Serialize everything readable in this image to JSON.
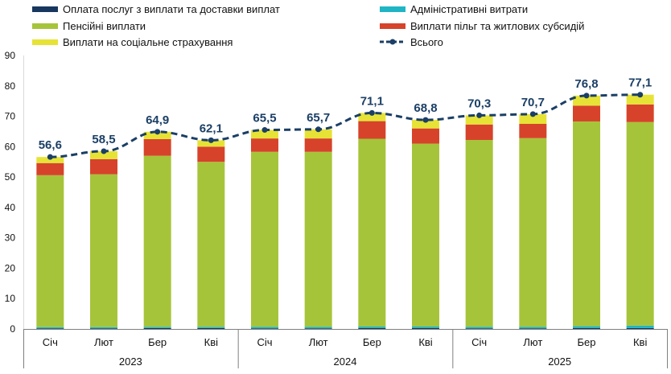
{
  "chart_data": {
    "type": "bar",
    "stacked": true,
    "categories": [
      "Січ",
      "Лют",
      "Бер",
      "Кві",
      "Січ",
      "Лют",
      "Бер",
      "Кві",
      "Січ",
      "Лют",
      "Бер",
      "Кві"
    ],
    "groups": [
      "2023",
      "2024",
      "2025"
    ],
    "ylim": [
      0,
      90
    ],
    "yticks": [
      0,
      10,
      20,
      30,
      40,
      50,
      60,
      70,
      80,
      90
    ],
    "legend_placement": "top",
    "grid": false,
    "series": [
      {
        "name": "Оплата послуг з виплати та доставки виплат",
        "color": "#17375e",
        "values": [
          0.2,
          0.2,
          0.3,
          0.3,
          0.2,
          0.2,
          0.3,
          0.3,
          0.2,
          0.2,
          0.3,
          0.3
        ]
      },
      {
        "name": "Адміністративні витрати",
        "color": "#1fb5c4",
        "values": [
          0.4,
          0.4,
          0.4,
          0.4,
          0.5,
          0.5,
          0.5,
          0.5,
          0.5,
          0.5,
          0.6,
          0.8
        ]
      },
      {
        "name": "Пенсійні виплати",
        "color": "#a6c43a",
        "values": [
          50.0,
          50.3,
          56.3,
          54.3,
          57.6,
          57.6,
          61.8,
          60.2,
          61.5,
          62.1,
          67.4,
          67.0
        ]
      },
      {
        "name": "Виплати пільг та житлових субсидій",
        "color": "#d6432a",
        "values": [
          4.0,
          5.0,
          5.5,
          5.0,
          4.4,
          4.4,
          5.8,
          5.0,
          5.1,
          4.7,
          5.2,
          5.8
        ]
      },
      {
        "name": "Виплати на соціальне страхування",
        "color": "#e6e336",
        "values": [
          2.0,
          2.6,
          2.4,
          2.1,
          2.8,
          3.0,
          2.7,
          2.8,
          3.0,
          3.2,
          3.3,
          3.2
        ]
      }
    ],
    "total": {
      "name": "Всього",
      "color": "#1b3f66",
      "style": "dashed line with markers",
      "values": [
        56.6,
        58.5,
        64.9,
        62.1,
        65.5,
        65.7,
        71.1,
        68.8,
        70.3,
        70.7,
        76.8,
        77.1
      ],
      "labels": [
        "56,6",
        "58,5",
        "64,9",
        "62,1",
        "65,5",
        "65,7",
        "71,1",
        "68,8",
        "70,3",
        "70,7",
        "76,8",
        "77,1"
      ]
    }
  }
}
